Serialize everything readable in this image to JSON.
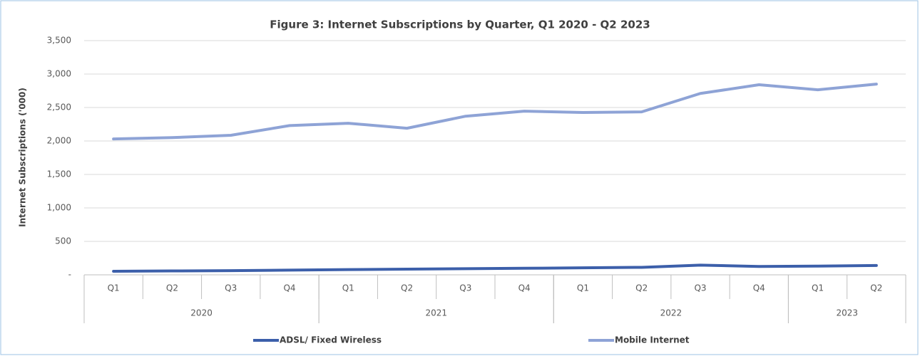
{
  "chart_data": {
    "type": "line",
    "title": "Figure 3: Internet Subscriptions by Quarter, Q1 2020 - Q2 2023",
    "y_label": "Internet Subscriptions ('000)",
    "categories": [
      {
        "quarter": "Q1",
        "year": "2020"
      },
      {
        "quarter": "Q2",
        "year": "2020"
      },
      {
        "quarter": "Q3",
        "year": "2020"
      },
      {
        "quarter": "Q4",
        "year": "2020"
      },
      {
        "quarter": "Q1",
        "year": "2021"
      },
      {
        "quarter": "Q2",
        "year": "2021"
      },
      {
        "quarter": "Q3",
        "year": "2021"
      },
      {
        "quarter": "Q4",
        "year": "2021"
      },
      {
        "quarter": "Q1",
        "year": "2022"
      },
      {
        "quarter": "Q2",
        "year": "2022"
      },
      {
        "quarter": "Q3",
        "year": "2022"
      },
      {
        "quarter": "Q4",
        "year": "2022"
      },
      {
        "quarter": "Q1",
        "year": "2023"
      },
      {
        "quarter": "Q2",
        "year": "2023"
      }
    ],
    "series": [
      {
        "name": "ADSL/ Fixed Wireless",
        "color": "#3c5faa",
        "values": [
          53,
          58,
          62,
          70,
          78,
          85,
          92,
          98,
          105,
          112,
          145,
          125,
          130,
          140
        ]
      },
      {
        "name": "Mobile Internet",
        "color": "#8ea3d6",
        "values": [
          2030,
          2050,
          2085,
          2230,
          2265,
          2190,
          2370,
          2445,
          2425,
          2435,
          2710,
          2840,
          2765,
          2850
        ]
      }
    ],
    "ylim": [
      0,
      3500
    ],
    "yticks": [
      {
        "value": 0,
        "label": "-"
      },
      500,
      {
        "value": 1000,
        "label": "1,000"
      },
      {
        "value": 1500,
        "label": "1,500"
      },
      {
        "value": 2000,
        "label": "2,000"
      },
      {
        "value": 2500,
        "label": "2,500"
      },
      {
        "value": 3000,
        "label": "3,000"
      },
      {
        "value": 3500,
        "label": "3,500"
      }
    ],
    "grid": true,
    "legend": "bottom"
  }
}
